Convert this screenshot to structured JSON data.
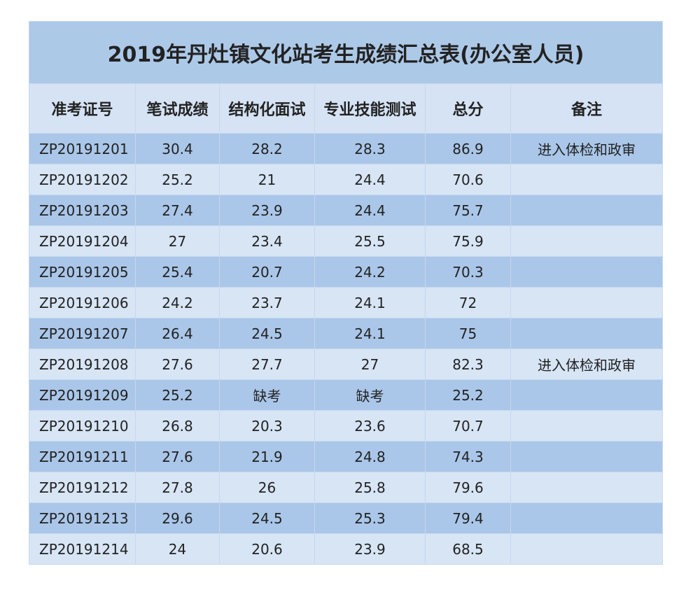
{
  "table": {
    "title": "2019年丹灶镇文化站考生成绩汇总表(办公室人员)",
    "headers": [
      "准考证号",
      "笔试成绩",
      "结构化面试",
      "专业技能测试",
      "总分",
      "备注"
    ],
    "rows": [
      [
        "ZP20191201",
        30.4,
        28.2,
        28.3,
        86.9,
        "进入体检和政审"
      ],
      [
        "ZP20191202",
        25.2,
        21,
        24.4,
        70.6
      ],
      [
        "ZP20191203",
        27.4,
        23.9,
        24.4,
        75.7
      ],
      [
        "ZP20191204",
        27,
        23.4,
        25.5,
        75.9
      ],
      [
        "ZP20191205",
        25.4,
        20.7,
        24.2,
        70.3
      ],
      [
        "ZP20191206",
        24.2,
        23.7,
        24.1,
        72
      ],
      [
        "ZP20191207",
        26.4,
        24.5,
        24.1,
        75
      ],
      [
        "ZP20191208",
        27.6,
        27.7,
        27,
        82.3,
        "进入体检和政审"
      ],
      [
        "ZP20191209",
        25.2,
        "缺考",
        "缺考",
        25.2
      ],
      [
        "ZP20191210",
        26.8,
        20.3,
        23.6,
        70.7
      ],
      [
        "ZP20191211",
        27.6,
        21.9,
        24.8,
        74.3
      ],
      [
        "ZP20191212",
        27.8,
        26,
        25.8,
        79.6
      ],
      [
        "ZP20191213",
        29.6,
        24.5,
        25.3,
        79.4
      ],
      [
        "ZP20191214",
        24,
        20.6,
        23.9,
        68.5
      ]
    ]
  }
}
